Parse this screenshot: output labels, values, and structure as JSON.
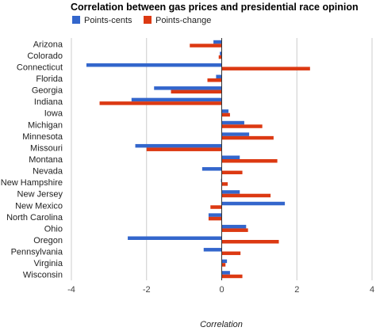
{
  "chart_data": {
    "type": "bar",
    "orientation": "horizontal",
    "title": "Correlation between gas prices and presidential race opinion",
    "xlabel": "Correlation",
    "ylabel": "",
    "xlim": [
      -4,
      4
    ],
    "xticks": [
      -4,
      -2,
      0,
      2,
      4
    ],
    "grid": true,
    "legend_position": "top-left",
    "categories": [
      "Arizona",
      "Colorado",
      "Connecticut",
      "Florida",
      "Georgia",
      "Indiana",
      "Iowa",
      "Michigan",
      "Minnesota",
      "Missouri",
      "Montana",
      "Nevada",
      "New Hampshire",
      "New Jersey",
      "New Mexico",
      "North Carolina",
      "Ohio",
      "Oregon",
      "Pennsylvania",
      "Virginia",
      "Wisconsin"
    ],
    "series": [
      {
        "name": "Points-cents",
        "color": "#3366cc",
        "values": [
          -0.22,
          -0.05,
          -3.6,
          -0.15,
          -1.8,
          -2.4,
          0.18,
          0.6,
          0.73,
          -2.3,
          0.48,
          -0.52,
          -0.02,
          0.48,
          1.68,
          -0.35,
          0.65,
          -2.5,
          -0.48,
          0.14,
          0.22
        ]
      },
      {
        "name": "Points-change",
        "color": "#dc3912",
        "values": [
          -0.85,
          -0.08,
          2.35,
          -0.38,
          -1.35,
          -3.25,
          0.22,
          1.08,
          1.38,
          -2.0,
          1.48,
          0.55,
          0.16,
          1.3,
          -0.3,
          -0.35,
          0.7,
          1.52,
          0.5,
          0.1,
          0.55
        ]
      }
    ]
  }
}
